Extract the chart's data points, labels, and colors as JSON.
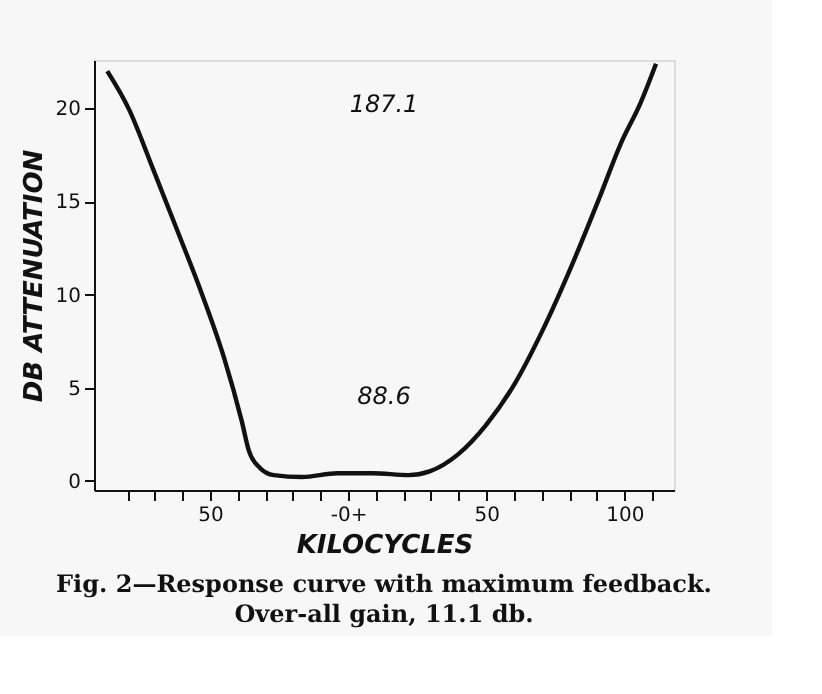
{
  "chart_data": {
    "type": "line",
    "title": "Fig. 2—Response curve with maximum feedback.",
    "subtitle": "Over-all gain, 11.1 db.",
    "xlabel": "KILOCYCLES",
    "ylabel": "DB ATTENUATION",
    "x": [
      -87.2,
      -79.5,
      -70.5,
      -62.8,
      -52.6,
      -44.9,
      -38.5,
      -35.9,
      -32,
      -26.9,
      -16.7,
      -3.8,
      9,
      21.8,
      29.5,
      39.7,
      50,
      60.3,
      70.5,
      80.8,
      91,
      98.7,
      105.9,
      111.5
    ],
    "series": [
      {
        "color": "#111111",
        "values": [
          22.0,
          20.0,
          16.7,
          13.8,
          9.9,
          6.6,
          3.2,
          1.6,
          0.7,
          0.3,
          0.2,
          0.4,
          0.4,
          0.3,
          0.5,
          1.4,
          3.0,
          5.2,
          8.1,
          11.5,
          15.2,
          18.1,
          20.3,
          22.4
        ]
      }
    ],
    "xlim": [
      -92,
      118
    ],
    "ylim": [
      -0.5,
      22.6
    ],
    "xticks": [
      {
        "value": -80,
        "label": null
      },
      {
        "value": -70,
        "label": null
      },
      {
        "value": -60,
        "label": null
      },
      {
        "value": -50,
        "label": "50"
      },
      {
        "value": -40,
        "label": null
      },
      {
        "value": -30,
        "label": null
      },
      {
        "value": -20,
        "label": null
      },
      {
        "value": -10,
        "label": null
      },
      {
        "value": 0,
        "label": "-0+"
      },
      {
        "value": 10,
        "label": null
      },
      {
        "value": 20,
        "label": null
      },
      {
        "value": 30,
        "label": null
      },
      {
        "value": 40,
        "label": null
      },
      {
        "value": 50,
        "label": "50"
      },
      {
        "value": 60,
        "label": null
      },
      {
        "value": 70,
        "label": null
      },
      {
        "value": 80,
        "label": null
      },
      {
        "value": 90,
        "label": null
      },
      {
        "value": 100,
        "label": "100"
      },
      {
        "value": 110,
        "label": null
      }
    ],
    "yticks": [
      0,
      5,
      10,
      15,
      20
    ],
    "annotations": [
      "187.1",
      "88.6"
    ],
    "grid": false,
    "marker": "none",
    "line_style": "solid"
  }
}
